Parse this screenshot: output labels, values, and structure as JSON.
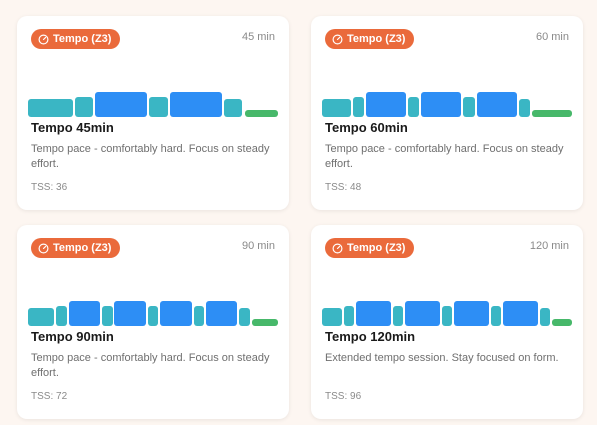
{
  "colors": {
    "zone_teal": "#3ab6c4",
    "zone_blue": "#2d8ef5",
    "zone_green": "#47b86a",
    "badge": "#ea6a3b"
  },
  "workouts": [
    {
      "badge_icon": "gauge-icon",
      "badge_label": "Tempo (Z3)",
      "duration": "45 min",
      "title": "Tempo 45min",
      "description": "Tempo pace - comfortably hard. Focus on steady effort.",
      "tss": "TSS: 36",
      "segments": [
        {
          "zone": "warmup",
          "minutes": 6,
          "intensity": 0.6
        },
        {
          "zone": "recovery",
          "minutes": 2.5,
          "intensity": 0.66
        },
        {
          "zone": "tempo",
          "minutes": 7,
          "intensity": 0.83
        },
        {
          "zone": "recovery",
          "minutes": 2.5,
          "intensity": 0.66
        },
        {
          "zone": "tempo",
          "minutes": 7,
          "intensity": 0.83
        },
        {
          "zone": "recovery",
          "minutes": 2.5,
          "intensity": 0.6
        },
        {
          "zone": "cooldown",
          "minutes": 4.5,
          "intensity": 0.25
        }
      ]
    },
    {
      "badge_icon": "gauge-icon",
      "badge_label": "Tempo (Z3)",
      "duration": "60 min",
      "title": "Tempo 60min",
      "description": "Tempo pace - comfortably hard. Focus on steady effort.",
      "tss": "TSS: 48",
      "segments": [
        {
          "zone": "warmup",
          "minutes": 5,
          "intensity": 0.6
        },
        {
          "zone": "recovery",
          "minutes": 2,
          "intensity": 0.66
        },
        {
          "zone": "tempo",
          "minutes": 7,
          "intensity": 0.83
        },
        {
          "zone": "recovery",
          "minutes": 2,
          "intensity": 0.66
        },
        {
          "zone": "tempo",
          "minutes": 7,
          "intensity": 0.83
        },
        {
          "zone": "recovery",
          "minutes": 2,
          "intensity": 0.66
        },
        {
          "zone": "tempo",
          "minutes": 7,
          "intensity": 0.83
        },
        {
          "zone": "recovery",
          "minutes": 2,
          "intensity": 0.6
        },
        {
          "zone": "cooldown",
          "minutes": 7,
          "intensity": 0.25
        }
      ]
    },
    {
      "badge_icon": "gauge-icon",
      "badge_label": "Tempo (Z3)",
      "duration": "90 min",
      "title": "Tempo 90min",
      "description": "Tempo pace - comfortably hard. Focus on steady effort.",
      "tss": "TSS: 72",
      "segments": [
        {
          "zone": "warmup",
          "minutes": 5,
          "intensity": 0.6
        },
        {
          "zone": "recovery",
          "minutes": 2,
          "intensity": 0.66
        },
        {
          "zone": "tempo",
          "minutes": 6,
          "intensity": 0.83
        },
        {
          "zone": "recovery",
          "minutes": 2,
          "intensity": 0.66
        },
        {
          "zone": "tempo",
          "minutes": 6,
          "intensity": 0.83
        },
        {
          "zone": "recovery",
          "minutes": 2,
          "intensity": 0.66
        },
        {
          "zone": "tempo",
          "minutes": 6,
          "intensity": 0.83
        },
        {
          "zone": "recovery",
          "minutes": 2,
          "intensity": 0.66
        },
        {
          "zone": "tempo",
          "minutes": 6,
          "intensity": 0.83
        },
        {
          "zone": "recovery",
          "minutes": 2,
          "intensity": 0.6
        },
        {
          "zone": "cooldown",
          "minutes": 5,
          "intensity": 0.25
        }
      ]
    },
    {
      "badge_icon": "gauge-icon",
      "badge_label": "Tempo (Z3)",
      "duration": "120 min",
      "title": "Tempo 120min",
      "description": "Extended tempo session. Stay focused on form.",
      "tss": "TSS: 96",
      "segments": [
        {
          "zone": "warmup",
          "minutes": 4,
          "intensity": 0.6
        },
        {
          "zone": "recovery",
          "minutes": 2,
          "intensity": 0.66
        },
        {
          "zone": "tempo",
          "minutes": 7,
          "intensity": 0.83
        },
        {
          "zone": "recovery",
          "minutes": 2,
          "intensity": 0.66
        },
        {
          "zone": "tempo",
          "minutes": 7,
          "intensity": 0.83
        },
        {
          "zone": "recovery",
          "minutes": 2,
          "intensity": 0.66
        },
        {
          "zone": "tempo",
          "minutes": 7,
          "intensity": 0.83
        },
        {
          "zone": "recovery",
          "minutes": 2,
          "intensity": 0.66
        },
        {
          "zone": "tempo",
          "minutes": 7,
          "intensity": 0.83
        },
        {
          "zone": "recovery",
          "minutes": 2,
          "intensity": 0.6
        },
        {
          "zone": "cooldown",
          "minutes": 4,
          "intensity": 0.25
        }
      ]
    }
  ]
}
